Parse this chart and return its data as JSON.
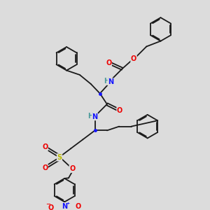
{
  "bg_color": "#dcdcdc",
  "bond_color": "#1a1a1a",
  "bond_lw": 1.3,
  "ring_r": 0.58,
  "atom_colors": {
    "C": "#1a1a1a",
    "H": "#4a9a9a",
    "N": "#1414ff",
    "O": "#ee0000",
    "S": "#bbbb00"
  },
  "fs": 7.0
}
